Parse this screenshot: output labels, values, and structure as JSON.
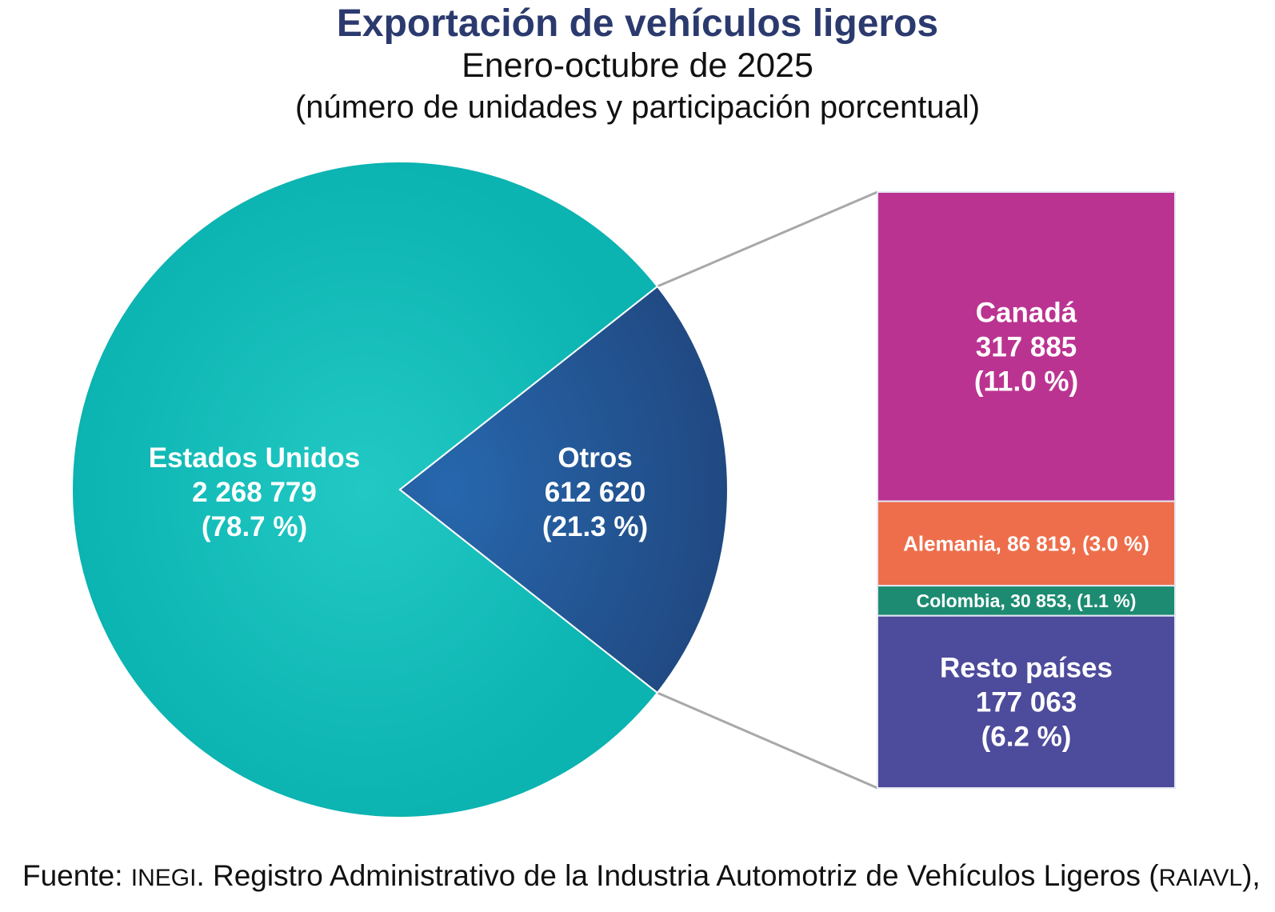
{
  "chart_data": {
    "type": "pie",
    "title": "Exportación de vehículos ligeros",
    "subtitle": "Enero-octubre de 2025",
    "units": "(número de unidades y participación porcentual)",
    "slices": [
      {
        "name": "Estados Unidos",
        "value": 2268779,
        "value_label": "2 268 779",
        "percent": 78.7,
        "percent_label": "(78.7 %)",
        "color": "#14b8b5"
      },
      {
        "name": "Otros",
        "value": 612620,
        "value_label": "612 620",
        "percent": 21.3,
        "percent_label": "(21.3 %)",
        "color": "#245595"
      }
    ],
    "breakdown_of": "Otros",
    "breakdown": [
      {
        "name": "Canadá",
        "value": 317885,
        "value_label": "317 885",
        "percent": 11.0,
        "percent_label": "(11.0 %)",
        "color": "#bb3391"
      },
      {
        "name": "Alemania",
        "value": 86819,
        "inline_label": "Alemania, 86 819, (3.0 %)",
        "percent": 3.0,
        "color": "#ee6e4b"
      },
      {
        "name": "Colombia",
        "value": 30853,
        "inline_label": "Colombia,  30 853, (1.1 %)",
        "percent": 1.1,
        "color": "#1d8b71"
      },
      {
        "name": "Resto países",
        "value": 177063,
        "value_label": "177 063",
        "percent": 6.2,
        "percent_label": "(6.2 %)",
        "color": "#4d4b9b"
      }
    ]
  },
  "source": {
    "prefix": "Fuente: ",
    "org": "INEGI",
    "text": ". Registro Administrativo de la Industria Automotriz de Vehículos Ligeros (",
    "abbr": "RAIAVL",
    "suffix": "),"
  }
}
